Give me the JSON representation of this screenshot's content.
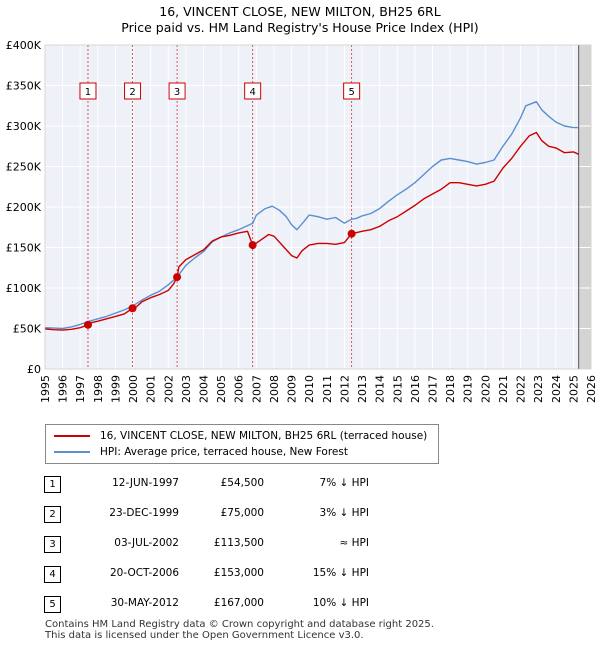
{
  "chart_data": {
    "type": "line",
    "title": "16, VINCENT CLOSE, NEW MILTON, BH25 6RL",
    "subtitle": "Price paid vs. HM Land Registry's House Price Index (HPI)",
    "xlim": [
      1995,
      2026
    ],
    "ylim": [
      0,
      400000
    ],
    "y_ticks": [
      {
        "value": 0,
        "label": "£0"
      },
      {
        "value": 50000,
        "label": "£50K"
      },
      {
        "value": 100000,
        "label": "£100K"
      },
      {
        "value": 150000,
        "label": "£150K"
      },
      {
        "value": 200000,
        "label": "£200K"
      },
      {
        "value": 250000,
        "label": "£250K"
      },
      {
        "value": 300000,
        "label": "£300K"
      },
      {
        "value": 350000,
        "label": "£350K"
      },
      {
        "value": 400000,
        "label": "£400K"
      }
    ],
    "x_ticks": [
      "1995",
      "1996",
      "1997",
      "1998",
      "1999",
      "2000",
      "2001",
      "2002",
      "2003",
      "2004",
      "2005",
      "2006",
      "2007",
      "2008",
      "2009",
      "2010",
      "2011",
      "2012",
      "2013",
      "2014",
      "2015",
      "2016",
      "2017",
      "2018",
      "2019",
      "2020",
      "2021",
      "2022",
      "2023",
      "2024",
      "2025",
      "2026"
    ],
    "series": [
      {
        "name": "16, VINCENT CLOSE, NEW MILTON, BH25 6RL (terraced house)",
        "color": "#cc0000",
        "x": [
          1995.0,
          1995.5,
          1996.0,
          1996.5,
          1997.0,
          1997.44,
          1997.6,
          1998.0,
          1998.5,
          1999.0,
          1999.5,
          1999.97,
          2000.2,
          2000.5,
          2001.0,
          2001.5,
          2002.0,
          2002.3,
          2002.5,
          2002.6,
          2003.0,
          2003.5,
          2004.0,
          2004.5,
          2005.0,
          2005.5,
          2006.0,
          2006.5,
          2006.79,
          2006.9,
          2007.3,
          2007.7,
          2008.0,
          2008.5,
          2009.0,
          2009.3,
          2009.6,
          2010.0,
          2010.5,
          2011.0,
          2011.5,
          2012.0,
          2012.41,
          2012.6,
          2013.0,
          2013.5,
          2014.0,
          2014.5,
          2015.0,
          2015.5,
          2016.0,
          2016.5,
          2017.0,
          2017.5,
          2018.0,
          2018.5,
          2019.0,
          2019.5,
          2020.0,
          2020.5,
          2021.0,
          2021.5,
          2022.0,
          2022.5,
          2022.9,
          2023.2,
          2023.6,
          2024.0,
          2024.5,
          2025.0,
          2025.3
        ],
        "y": [
          49500,
          48500,
          48000,
          49000,
          51000,
          54500,
          57000,
          59000,
          62000,
          65000,
          68000,
          75000,
          77000,
          83000,
          88000,
          92000,
          97000,
          105000,
          113500,
          126000,
          135000,
          141000,
          147000,
          158000,
          163000,
          165000,
          168000,
          170000,
          153000,
          154000,
          160000,
          166000,
          164000,
          152000,
          140000,
          137000,
          146000,
          153000,
          155000,
          155000,
          154000,
          156000,
          167000,
          168000,
          170000,
          172000,
          176000,
          183000,
          188000,
          195000,
          202000,
          210000,
          216000,
          222000,
          230000,
          230000,
          228000,
          226000,
          228000,
          232000,
          248000,
          260000,
          275000,
          288000,
          292000,
          282000,
          275000,
          273000,
          267000,
          268000,
          265000
        ]
      },
      {
        "name": "HPI: Average price, terraced house, New Forest",
        "color": "#5b8fd0",
        "x": [
          1995.0,
          1995.5,
          1996.0,
          1996.5,
          1997.0,
          1997.44,
          1998.0,
          1998.5,
          1999.0,
          1999.5,
          1999.97,
          2000.5,
          2001.0,
          2001.5,
          2002.0,
          2002.5,
          2003.0,
          2003.5,
          2004.0,
          2004.5,
          2005.0,
          2005.5,
          2006.0,
          2006.5,
          2006.79,
          2007.0,
          2007.5,
          2007.9,
          2008.3,
          2008.7,
          2009.0,
          2009.3,
          2009.7,
          2010.0,
          2010.5,
          2011.0,
          2011.5,
          2012.0,
          2012.41,
          2012.7,
          2013.0,
          2013.5,
          2014.0,
          2014.5,
          2015.0,
          2015.5,
          2016.0,
          2016.5,
          2017.0,
          2017.5,
          2018.0,
          2018.5,
          2019.0,
          2019.5,
          2020.0,
          2020.5,
          2021.0,
          2021.5,
          2022.0,
          2022.3,
          2022.9,
          2023.2,
          2023.6,
          2024.0,
          2024.5,
          2025.0,
          2025.3
        ],
        "y": [
          51000,
          50500,
          50000,
          52000,
          55000,
          58500,
          62000,
          65000,
          69000,
          73000,
          77500,
          85000,
          91000,
          96000,
          104000,
          113500,
          128000,
          137000,
          145000,
          157000,
          163000,
          168000,
          172000,
          177000,
          180000,
          190000,
          198000,
          201000,
          196000,
          188000,
          178000,
          172000,
          182000,
          190000,
          188000,
          185000,
          187000,
          180000,
          185000,
          186000,
          189000,
          192000,
          198000,
          207000,
          215000,
          222000,
          230000,
          240000,
          250000,
          258000,
          260000,
          258000,
          256000,
          253000,
          255000,
          258000,
          275000,
          290000,
          310000,
          325000,
          330000,
          320000,
          312000,
          305000,
          300000,
          298000,
          298000
        ]
      }
    ],
    "markers": [
      {
        "label": "1",
        "x": 1997.44,
        "y": 54500
      },
      {
        "label": "2",
        "x": 1999.97,
        "y": 75000
      },
      {
        "label": "3",
        "x": 2002.5,
        "y": 113500
      },
      {
        "label": "4",
        "x": 2006.79,
        "y": 153000
      },
      {
        "label": "5",
        "x": 2012.41,
        "y": 167000
      }
    ]
  },
  "legend": {
    "items": [
      {
        "label": "16, VINCENT CLOSE, NEW MILTON, BH25 6RL (terraced house)",
        "color": "#cc0000"
      },
      {
        "label": "HPI: Average price, terraced house, New Forest",
        "color": "#5b8fd0"
      }
    ]
  },
  "events": [
    {
      "num": "1",
      "date": "12-JUN-1997",
      "price": "£54,500",
      "hpi": "7% ↓ HPI"
    },
    {
      "num": "2",
      "date": "23-DEC-1999",
      "price": "£75,000",
      "hpi": "3% ↓ HPI"
    },
    {
      "num": "3",
      "date": "03-JUL-2002",
      "price": "£113,500",
      "hpi": "≈ HPI"
    },
    {
      "num": "4",
      "date": "20-OCT-2006",
      "price": "£153,000",
      "hpi": "15% ↓ HPI"
    },
    {
      "num": "5",
      "date": "30-MAY-2012",
      "price": "£167,000",
      "hpi": "10% ↓ HPI"
    }
  ],
  "footer": {
    "line1": "Contains HM Land Registry data © Crown copyright and database right 2025.",
    "line2": "This data is licensed under the Open Government Licence v3.0."
  }
}
